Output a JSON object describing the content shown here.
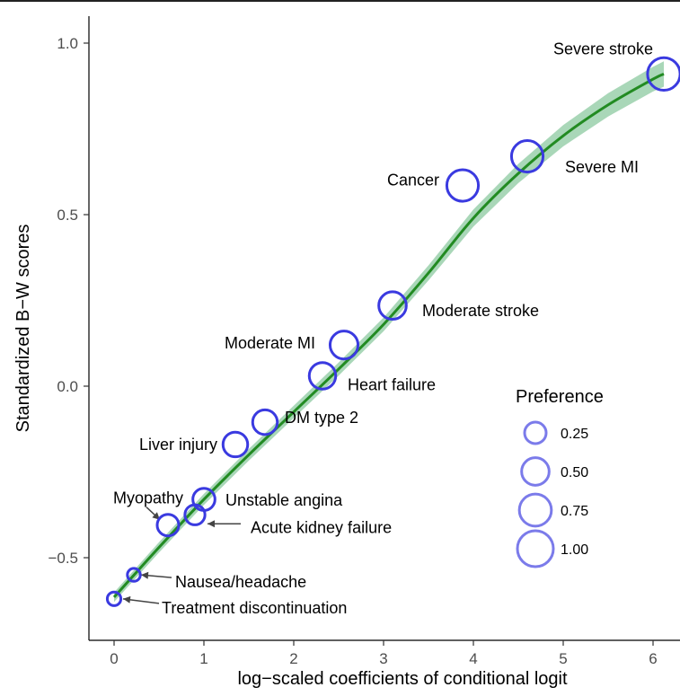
{
  "chart_data": {
    "type": "scatter",
    "title": "",
    "xlabel": "log−scaled coefficients of conditional logit",
    "ylabel": "Standardized B−W scores",
    "xlim": [
      -0.3,
      6.15
    ],
    "ylim": [
      -0.7,
      1.05
    ],
    "x_ticks": [
      0,
      1,
      2,
      3,
      4,
      5,
      6
    ],
    "x_tick_labels": [
      "0",
      "1",
      "2",
      "3",
      "4",
      "5",
      "6"
    ],
    "y_ticks": [
      -0.5,
      0.0,
      0.5,
      1.0
    ],
    "y_tick_labels": [
      "−0.5",
      "0.0",
      "0.5",
      "1.0"
    ],
    "grid": false,
    "legend": {
      "title": "Preference",
      "placement": "right",
      "entries": [
        {
          "label": "0.25",
          "value": 0.25
        },
        {
          "label": "0.50",
          "value": 0.5
        },
        {
          "label": "0.75",
          "value": 0.75
        },
        {
          "label": "1.00",
          "value": 1.0
        }
      ]
    },
    "colors": {
      "point_stroke": "#3a3ae0",
      "legend_stroke": "#7b7bea",
      "fit_line": "#228b22",
      "ribbon": "#8cc9a0"
    },
    "points": [
      {
        "label": "Treatment discontinuation",
        "x": 0.0,
        "y": -0.62,
        "preference": 0.05
      },
      {
        "label": "Nausea/headache",
        "x": 0.22,
        "y": -0.55,
        "preference": 0.04
      },
      {
        "label": "Myopathy",
        "x": 0.6,
        "y": -0.405,
        "preference": 0.25
      },
      {
        "label": "Acute kidney failure",
        "x": 0.9,
        "y": -0.375,
        "preference": 0.2
      },
      {
        "label": "Unstable angina",
        "x": 1.0,
        "y": -0.33,
        "preference": 0.27
      },
      {
        "label": "Liver injury",
        "x": 1.35,
        "y": -0.17,
        "preference": 0.37
      },
      {
        "label": "DM type 2",
        "x": 1.68,
        "y": -0.105,
        "preference": 0.37
      },
      {
        "label": "Heart failure",
        "x": 2.32,
        "y": 0.03,
        "preference": 0.45
      },
      {
        "label": "Moderate MI",
        "x": 2.56,
        "y": 0.12,
        "preference": 0.52
      },
      {
        "label": "Moderate stroke",
        "x": 3.1,
        "y": 0.235,
        "preference": 0.5
      },
      {
        "label": "Cancer",
        "x": 3.88,
        "y": 0.585,
        "preference": 0.72
      },
      {
        "label": "Severe MI",
        "x": 4.6,
        "y": 0.67,
        "preference": 0.72
      },
      {
        "label": "Severe stroke",
        "x": 6.12,
        "y": 0.91,
        "preference": 0.78
      }
    ],
    "fit": {
      "x": [
        0.0,
        0.5,
        1.0,
        1.5,
        2.0,
        2.5,
        3.0,
        3.5,
        4.0,
        4.5,
        5.0,
        5.5,
        6.0,
        6.12
      ],
      "y": [
        -0.615,
        -0.47,
        -0.33,
        -0.2,
        -0.075,
        0.05,
        0.18,
        0.33,
        0.49,
        0.62,
        0.73,
        0.82,
        0.895,
        0.91
      ],
      "band": [
        0.014,
        0.015,
        0.016,
        0.017,
        0.018,
        0.019,
        0.02,
        0.022,
        0.025,
        0.028,
        0.031,
        0.034,
        0.036,
        0.037
      ]
    }
  }
}
